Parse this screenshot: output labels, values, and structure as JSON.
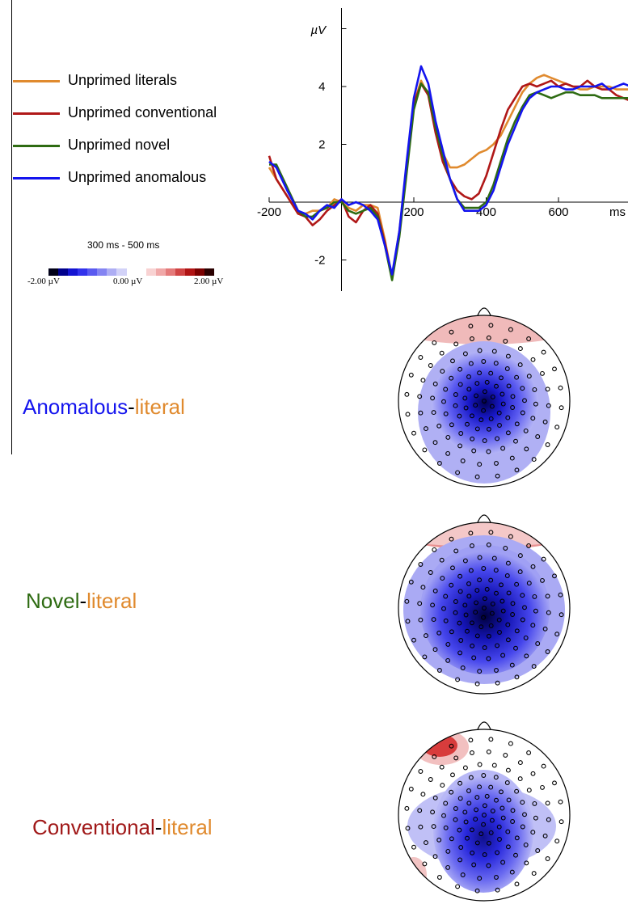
{
  "legend": {
    "items": [
      {
        "label": "Unprimed literals",
        "color": "#e08a2e"
      },
      {
        "label": "Unprimed conventional",
        "color": "#b01818"
      },
      {
        "label": "Unprimed novel",
        "color": "#2e6b12"
      },
      {
        "label": "Unprimed anomalous",
        "color": "#1414ee"
      }
    ]
  },
  "colorbar": {
    "title": "300 ms - 500 ms",
    "min_label": "-2.00 µV",
    "mid_label": "0.00 µV",
    "max_label": "2.00 µV",
    "colors": [
      "#000018",
      "#00008c",
      "#1414d2",
      "#3232ec",
      "#5a5af0",
      "#8484f2",
      "#aeaef4",
      "#d2d2f8",
      "#ffffff",
      "#ffffff",
      "#f8d2d2",
      "#f0a8a8",
      "#e47a7a",
      "#d04444",
      "#b01414",
      "#7a0000",
      "#2a0000"
    ]
  },
  "contrasts": [
    {
      "first": "Anomalous",
      "first_color": "#1414ee",
      "dash": "-",
      "second": "literal",
      "second_color": "#e08a2e"
    },
    {
      "first": "Novel",
      "first_color": "#2e6b12",
      "dash": "-",
      "second": "literal",
      "second_color": "#e08a2e"
    },
    {
      "first": "Conventional",
      "first_color": "#a01818",
      "dash": "-",
      "second": "literal",
      "second_color": "#e08a2e"
    }
  ],
  "chart_data": {
    "type": "line",
    "ylabel": "µV",
    "xlabel": "ms",
    "x_ticks": [
      "-200",
      "200",
      "400",
      "600"
    ],
    "y_ticks": [
      "-2",
      "2",
      "4"
    ],
    "xlim": [
      -200,
      800
    ],
    "ylim": [
      -3,
      6
    ],
    "series": [
      {
        "name": "Unprimed literals",
        "color": "#e08a2e",
        "x": [
          -200,
          -180,
          -150,
          -120,
          -100,
          -80,
          -60,
          -40,
          -20,
          0,
          20,
          40,
          60,
          80,
          100,
          120,
          140,
          160,
          180,
          200,
          220,
          240,
          260,
          280,
          300,
          320,
          340,
          360,
          380,
          400,
          420,
          440,
          460,
          480,
          500,
          520,
          540,
          560,
          580,
          600,
          620,
          640,
          660,
          680,
          700,
          720,
          740,
          760,
          780,
          800
        ],
        "y": [
          1.2,
          0.8,
          0.2,
          -0.4,
          -0.4,
          -0.3,
          -0.3,
          -0.2,
          0.1,
          0.0,
          -0.2,
          -0.3,
          -0.1,
          -0.1,
          -0.2,
          -1.3,
          -2.6,
          -1.0,
          1.2,
          3.4,
          4.2,
          3.7,
          2.6,
          1.7,
          1.2,
          1.2,
          1.3,
          1.5,
          1.7,
          1.8,
          2.0,
          2.3,
          2.8,
          3.3,
          3.8,
          4.1,
          4.3,
          4.4,
          4.3,
          4.2,
          4.1,
          4.0,
          3.9,
          3.9,
          4.0,
          4.0,
          4.0,
          3.9,
          3.9,
          3.9
        ]
      },
      {
        "name": "Unprimed conventional",
        "color": "#b01818",
        "x": [
          -200,
          -180,
          -150,
          -120,
          -100,
          -80,
          -60,
          -40,
          -20,
          0,
          20,
          40,
          60,
          80,
          100,
          120,
          140,
          160,
          180,
          200,
          220,
          240,
          260,
          280,
          300,
          320,
          340,
          360,
          380,
          400,
          420,
          440,
          460,
          480,
          500,
          520,
          540,
          560,
          580,
          600,
          620,
          640,
          660,
          680,
          700,
          720,
          740,
          760,
          780,
          800
        ],
        "y": [
          1.6,
          0.8,
          0.2,
          -0.4,
          -0.5,
          -0.8,
          -0.6,
          -0.3,
          -0.1,
          0.1,
          -0.5,
          -0.7,
          -0.3,
          -0.1,
          -0.4,
          -1.4,
          -2.6,
          -1.1,
          1.2,
          3.4,
          4.1,
          3.7,
          2.4,
          1.4,
          0.8,
          0.4,
          0.2,
          0.1,
          0.3,
          0.9,
          1.7,
          2.5,
          3.2,
          3.6,
          4.0,
          4.1,
          4.0,
          4.1,
          4.2,
          4.0,
          4.1,
          4.0,
          4.0,
          4.2,
          4.0,
          3.9,
          3.9,
          3.7,
          3.6,
          3.5
        ]
      },
      {
        "name": "Unprimed novel",
        "color": "#2e6b12",
        "x": [
          -200,
          -180,
          -150,
          -120,
          -100,
          -80,
          -60,
          -40,
          -20,
          0,
          20,
          40,
          60,
          80,
          100,
          120,
          140,
          160,
          180,
          200,
          220,
          240,
          260,
          280,
          300,
          320,
          340,
          360,
          380,
          400,
          420,
          440,
          460,
          480,
          500,
          520,
          540,
          560,
          580,
          600,
          620,
          640,
          660,
          680,
          700,
          720,
          740,
          760,
          780,
          800
        ],
        "y": [
          1.3,
          1.3,
          0.5,
          -0.3,
          -0.5,
          -0.5,
          -0.3,
          -0.2,
          0.0,
          0.0,
          -0.3,
          -0.4,
          -0.3,
          -0.2,
          -0.5,
          -1.5,
          -2.7,
          -1.2,
          1.0,
          3.2,
          4.1,
          3.8,
          2.6,
          1.6,
          0.8,
          0.1,
          -0.2,
          -0.2,
          -0.2,
          0.0,
          0.6,
          1.4,
          2.2,
          2.8,
          3.3,
          3.7,
          3.8,
          3.7,
          3.6,
          3.7,
          3.8,
          3.8,
          3.7,
          3.7,
          3.7,
          3.6,
          3.6,
          3.6,
          3.6,
          3.6
        ]
      },
      {
        "name": "Unprimed anomalous",
        "color": "#1414ee",
        "x": [
          -200,
          -180,
          -150,
          -120,
          -100,
          -80,
          -60,
          -40,
          -20,
          0,
          20,
          40,
          60,
          80,
          100,
          120,
          140,
          160,
          180,
          200,
          220,
          240,
          260,
          280,
          300,
          320,
          340,
          360,
          380,
          400,
          420,
          440,
          460,
          480,
          500,
          520,
          540,
          560,
          580,
          600,
          620,
          640,
          660,
          680,
          700,
          720,
          740,
          760,
          780,
          800
        ],
        "y": [
          1.4,
          1.2,
          0.4,
          -0.3,
          -0.4,
          -0.6,
          -0.3,
          -0.1,
          -0.2,
          0.1,
          -0.1,
          0.0,
          -0.1,
          -0.3,
          -0.6,
          -1.5,
          -2.5,
          -1.0,
          1.4,
          3.6,
          4.7,
          4.1,
          2.8,
          1.8,
          0.8,
          0.1,
          -0.3,
          -0.3,
          -0.3,
          -0.1,
          0.4,
          1.2,
          2.0,
          2.6,
          3.2,
          3.6,
          3.8,
          3.9,
          4.0,
          4.0,
          3.9,
          3.9,
          4.0,
          4.0,
          4.0,
          4.1,
          3.9,
          4.0,
          4.1,
          4.0
        ]
      }
    ]
  }
}
